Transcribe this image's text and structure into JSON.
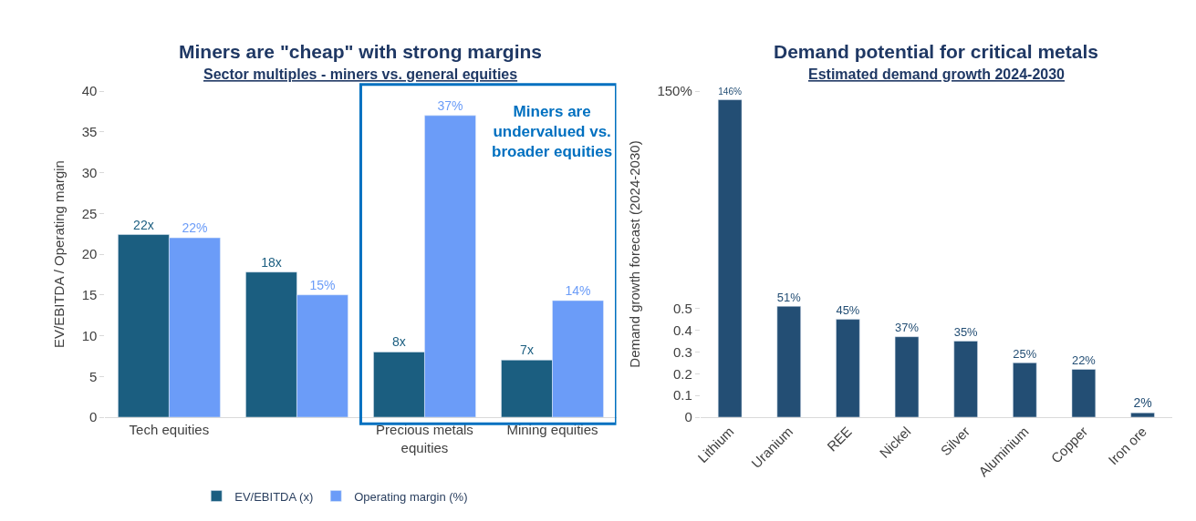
{
  "chart_data": [
    {
      "type": "bar",
      "title": "Miners are \"cheap\" with strong margins",
      "subtitle": "Sector multiples - miners vs. general equities",
      "ylabel": "EV/EBITDA / Operating margin",
      "categories": [
        "Tech equities",
        null,
        "Precious metals equities",
        "Mining equities"
      ],
      "series": [
        {
          "name": "EV/EBITDA (x)",
          "color": "#1b5e80",
          "values": [
            22.4,
            17.8,
            8,
            7
          ],
          "value_labels": [
            "22x",
            "18x",
            "8x",
            "7x"
          ]
        },
        {
          "name": "Operating margin (%)",
          "color": "#6b9cf8",
          "values": [
            22,
            15,
            37,
            14.3
          ],
          "value_labels": [
            "22%",
            "15%",
            "37%",
            "14%"
          ]
        }
      ],
      "ylim": [
        0,
        40
      ],
      "yticks": [
        0,
        5,
        10,
        15,
        20,
        25,
        30,
        35,
        40
      ],
      "legend": "bottom",
      "annotations": [
        "Miners are undervalued vs. broader equities"
      ]
    },
    {
      "type": "bar",
      "title": "Demand potential for critical metals",
      "subtitle": "Estimated demand growth 2024-2030",
      "ylabel": "Demand growth forecast (2024-2030)",
      "categories": [
        "Lithium",
        "Uranium",
        "REE",
        "Nickel",
        "Silver",
        "Aluminium",
        "Copper",
        "Iron ore"
      ],
      "series": [
        {
          "color": "#234e74",
          "values": [
            1.46,
            0.51,
            0.45,
            0.37,
            0.35,
            0.25,
            0.22,
            0.02
          ],
          "value_labels": [
            "146%",
            "51%",
            "45%",
            "37%",
            "35%",
            "25%",
            "22%",
            "2%"
          ]
        }
      ],
      "ylim": [
        0,
        1.5
      ],
      "yticks": [
        0,
        0.1,
        0.2,
        0.3,
        0.4,
        0.5,
        {
          "value": 1.5,
          "label": "150%"
        }
      ],
      "legend": false
    }
  ]
}
